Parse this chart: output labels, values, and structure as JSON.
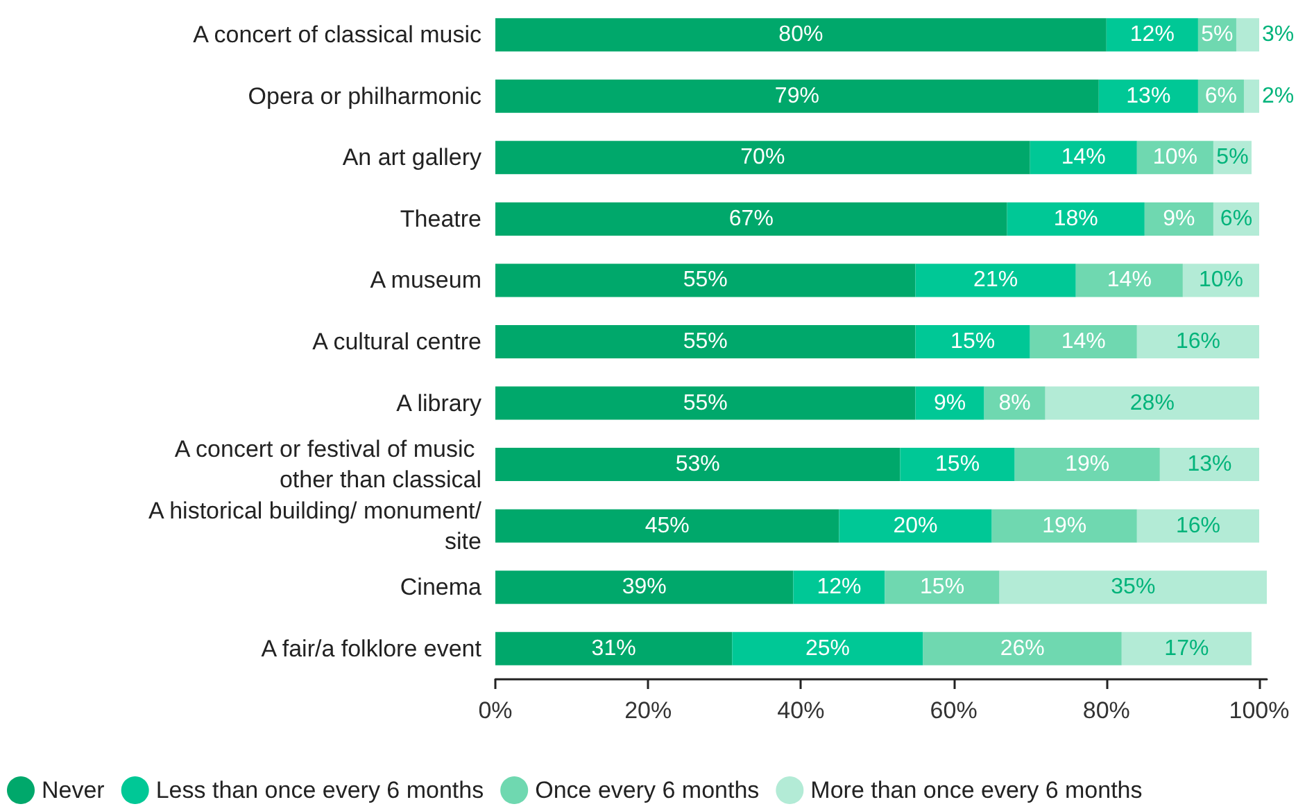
{
  "chart_data": {
    "type": "bar",
    "orientation": "horizontal",
    "stacked": true,
    "grid": false,
    "legend": "bottom left",
    "categories": [
      "A concert of classical music",
      "Opera or philharmonic",
      "An art gallery",
      "Theatre",
      "A museum",
      "A cultural centre",
      "A library",
      "A concert or festival of music other than classical",
      "A historical building/ monument/site",
      "Cinema",
      "A fair/a folklore event"
    ],
    "xlim": [
      0,
      101
    ],
    "xticks": [
      {
        "value": 0,
        "label": "0%"
      },
      {
        "value": 20,
        "label": "20%"
      },
      {
        "value": 40,
        "label": "40%"
      },
      {
        "value": 60,
        "label": "60%"
      },
      {
        "value": 80,
        "label": "80%"
      },
      {
        "value": 100,
        "label": "100%"
      }
    ],
    "series": [
      {
        "name": "Never",
        "color": "#00a86b",
        "values": [
          80,
          79,
          70,
          67,
          55,
          55,
          55,
          53,
          45,
          39,
          31
        ],
        "value_labels": [
          "80%",
          "79%",
          "70%",
          "67%",
          "55%",
          "55%",
          "55%",
          "53%",
          "45%",
          "39%",
          "31%"
        ]
      },
      {
        "name": "Less than once every 6 months",
        "color": "#00c896",
        "values": [
          12,
          13,
          14,
          18,
          21,
          15,
          9,
          15,
          20,
          12,
          25
        ],
        "value_labels": [
          "12%",
          "13%",
          "14%",
          "18%",
          "21%",
          "15%",
          "9%",
          "15%",
          "20%",
          "12%",
          "25%"
        ]
      },
      {
        "name": "Once every 6 months",
        "color": "#6fd8b0",
        "values": [
          5,
          6,
          10,
          9,
          14,
          14,
          8,
          19,
          19,
          15,
          26
        ],
        "value_labels": [
          "5%",
          "6%",
          "10%",
          "9%",
          "14%",
          "14%",
          "8%",
          "19%",
          "19%",
          "15%",
          "26%"
        ]
      },
      {
        "name": "More than once every 6 months",
        "color": "#b3ebd6",
        "values": [
          3,
          2,
          5,
          6,
          10,
          16,
          28,
          13,
          16,
          35,
          17
        ],
        "value_labels": [
          "3%",
          "2%",
          "5%",
          "6%",
          "10%",
          "16%",
          "28%",
          "13%",
          "16%",
          "35%",
          "17%"
        ]
      }
    ]
  }
}
